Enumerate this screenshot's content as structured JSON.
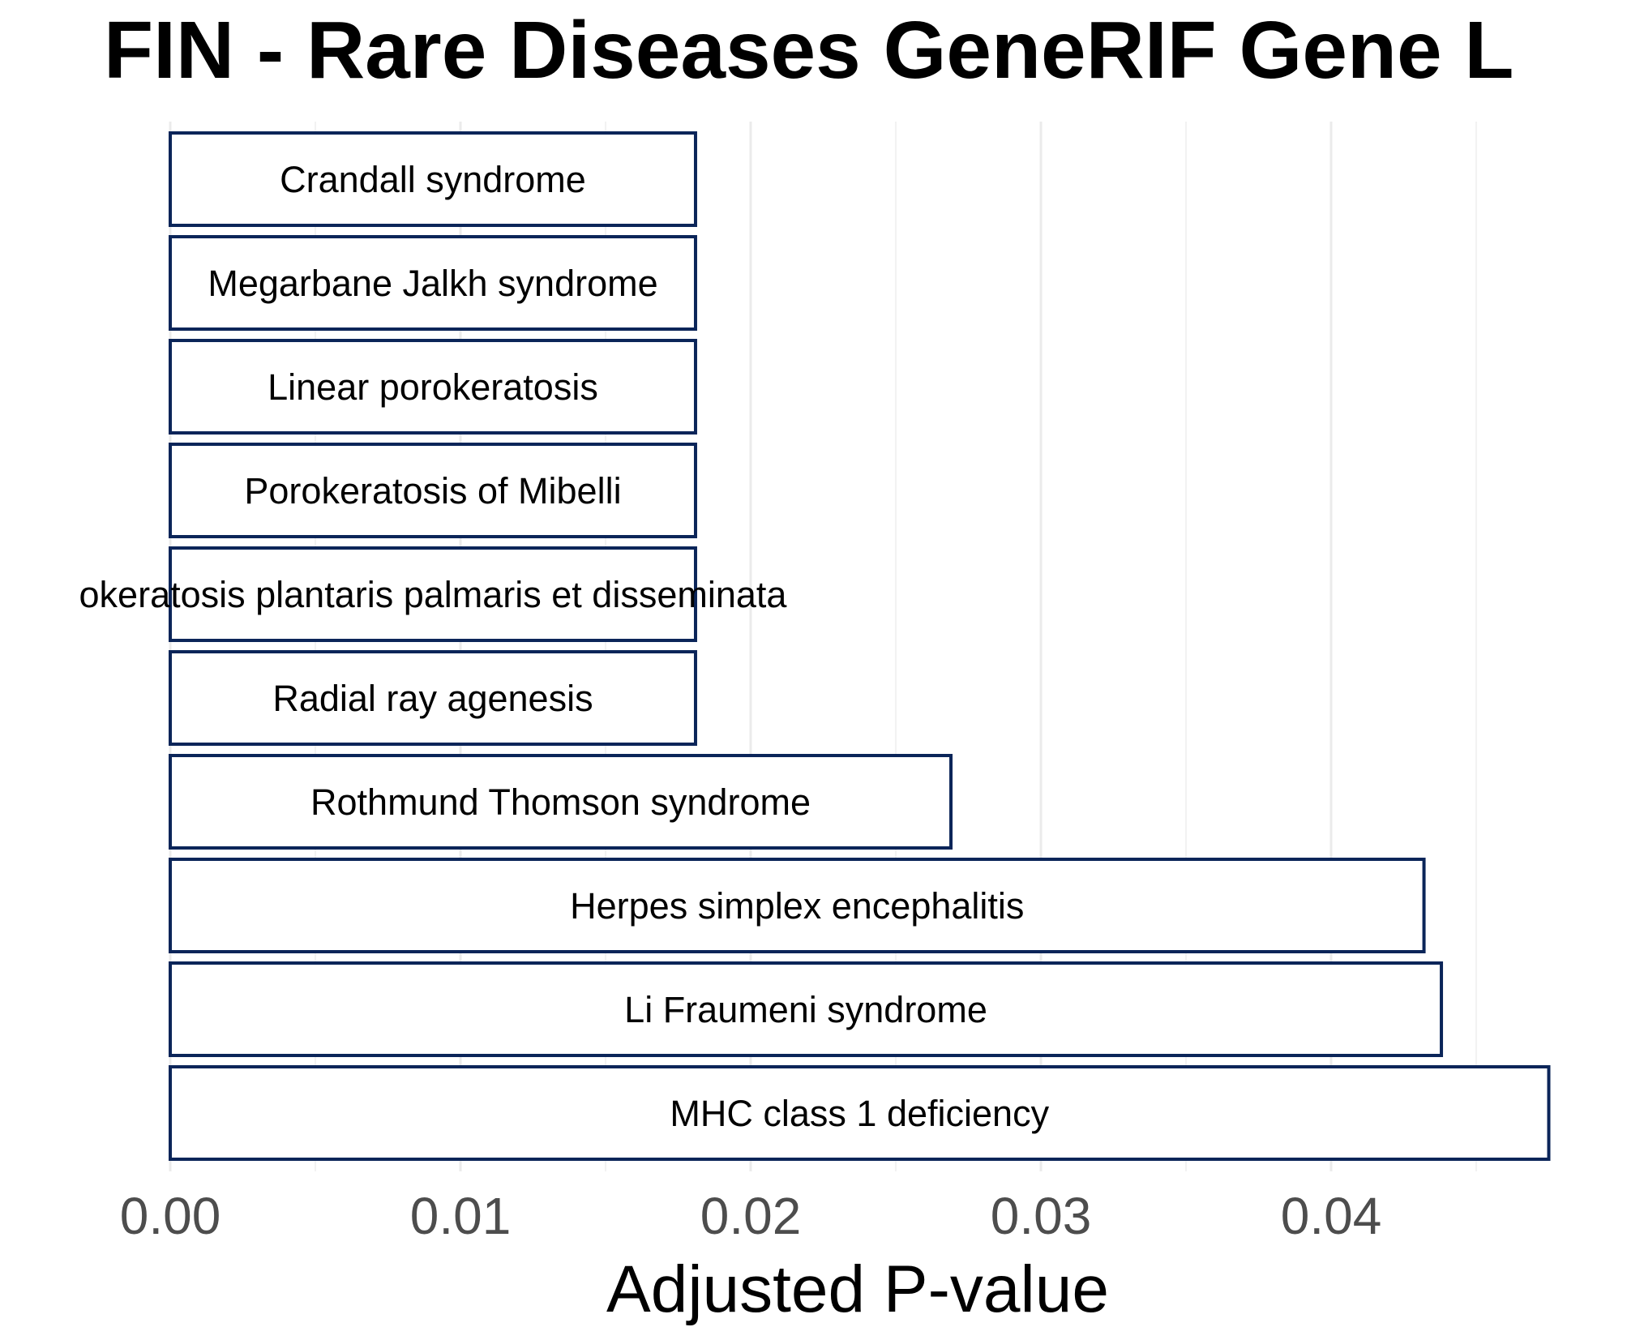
{
  "chart_data": {
    "type": "bar",
    "orientation": "horizontal",
    "title": "FIN  -  Rare Diseases GeneRIF Gene L",
    "xlabel": "Adjusted P-value",
    "ylabel": "",
    "xlim": [
      0,
      0.047
    ],
    "x_ticks": [
      0.0,
      0.01,
      0.02,
      0.03,
      0.04
    ],
    "x_tick_labels": [
      "0.00",
      "0.01",
      "0.02",
      "0.03",
      "0.04"
    ],
    "grid": true,
    "categories": [
      "Crandall syndrome",
      "Megarbane Jalkh syndrome",
      "Linear porokeratosis",
      "Porokeratosis of Mibelli",
      "okeratosis plantaris palmaris et disseminata",
      "Radial ray agenesis",
      "Rothmund Thomson syndrome",
      "Herpes simplex encephalitis",
      "Li Fraumeni syndrome",
      "MHC class 1 deficiency"
    ],
    "values": [
      0.0181,
      0.0181,
      0.0181,
      0.0181,
      0.0181,
      0.0181,
      0.0269,
      0.0432,
      0.0438,
      0.0475
    ],
    "colors": {
      "bar_fill": "#ffffff",
      "bar_stroke": "#0b2559",
      "grid": "#ebebeb",
      "tick_text": "#4d4d4d"
    }
  }
}
